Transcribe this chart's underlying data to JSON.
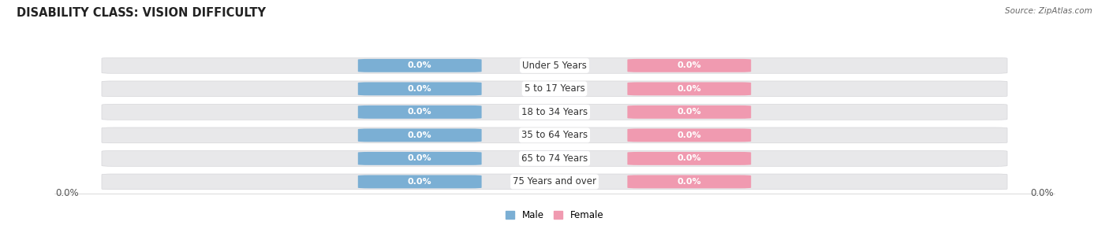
{
  "title": "DISABILITY CLASS: VISION DIFFICULTY",
  "source": "Source: ZipAtlas.com",
  "categories": [
    "Under 5 Years",
    "5 to 17 Years",
    "18 to 34 Years",
    "35 to 64 Years",
    "65 to 74 Years",
    "75 Years and over"
  ],
  "male_values": [
    0.0,
    0.0,
    0.0,
    0.0,
    0.0,
    0.0
  ],
  "female_values": [
    0.0,
    0.0,
    0.0,
    0.0,
    0.0,
    0.0
  ],
  "male_color": "#7bafd4",
  "female_color": "#f09ab0",
  "male_label": "Male",
  "female_label": "Female",
  "bar_bg_color": "#e8e8ea",
  "background_color": "#ffffff",
  "title_fontsize": 10.5,
  "label_fontsize": 8.5,
  "tick_fontsize": 8.5,
  "annotation_fontsize": 8,
  "left_label": "0.0%",
  "right_label": "0.0%"
}
